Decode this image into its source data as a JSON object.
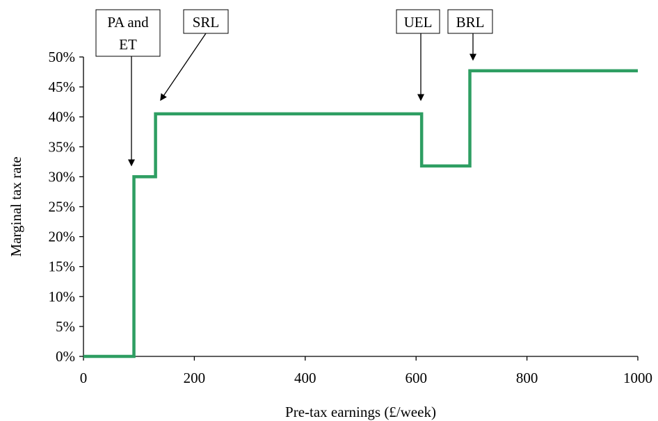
{
  "chart_data": {
    "type": "line",
    "title": "",
    "xlabel": "Pre-tax earnings (£/week)",
    "ylabel": "Marginal tax rate",
    "xlim": [
      0,
      1000
    ],
    "ylim": [
      0,
      0.5
    ],
    "x_ticks": [
      0,
      200,
      400,
      600,
      800,
      1000
    ],
    "x_tick_labels": [
      "0",
      "200",
      "400",
      "600",
      "800",
      "1000"
    ],
    "y_ticks": [
      0,
      0.05,
      0.1,
      0.15,
      0.2,
      0.25,
      0.3,
      0.35,
      0.4,
      0.45,
      0.5
    ],
    "y_tick_labels": [
      "0%",
      "5%",
      "10%",
      "15%",
      "20%",
      "25%",
      "30%",
      "35%",
      "40%",
      "45%",
      "50%"
    ],
    "grid": false,
    "legend": "none",
    "series": [
      {
        "color": "#2e9e62",
        "step": "post",
        "x": [
          0,
          91,
          130,
          610,
          697,
          1000
        ],
        "y": [
          0,
          0.3,
          0.405,
          0.318,
          0.477,
          0.477
        ]
      }
    ],
    "annotations": [
      {
        "label_lines": [
          "PA and",
          "ET"
        ],
        "x": 91,
        "y": 0.3
      },
      {
        "label_lines": [
          "SRL"
        ],
        "x": 130,
        "y": 0.405
      },
      {
        "label_lines": [
          "UEL"
        ],
        "x": 610,
        "y": 0.405
      },
      {
        "label_lines": [
          "BRL"
        ],
        "x": 697,
        "y": 0.477
      }
    ]
  }
}
